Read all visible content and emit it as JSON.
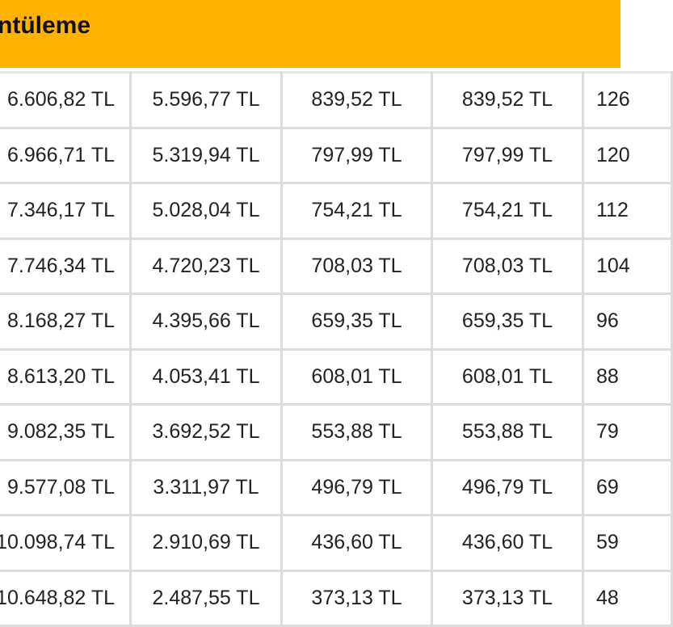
{
  "header": {
    "title": "ntüleme",
    "accent_color": "#FFB300"
  },
  "table": {
    "rows": [
      [
        "6.606,82 TL",
        "5.596,77 TL",
        "839,52 TL",
        "839,52 TL",
        "126"
      ],
      [
        "6.966,71 TL",
        "5.319,94 TL",
        "797,99 TL",
        "797,99 TL",
        "120"
      ],
      [
        "7.346,17 TL",
        "5.028,04 TL",
        "754,21 TL",
        "754,21 TL",
        "112"
      ],
      [
        "7.746,34 TL",
        "4.720,23 TL",
        "708,03 TL",
        "708,03 TL",
        "104"
      ],
      [
        "8.168,27 TL",
        "4.395,66 TL",
        "659,35 TL",
        "659,35 TL",
        "96"
      ],
      [
        "8.613,20 TL",
        "4.053,41 TL",
        "608,01 TL",
        "608,01 TL",
        "88"
      ],
      [
        "9.082,35 TL",
        "3.692,52 TL",
        "553,88 TL",
        "553,88 TL",
        "79"
      ],
      [
        "9.577,08 TL",
        "3.311,97 TL",
        "496,79 TL",
        "496,79 TL",
        "69"
      ],
      [
        "10.098,74 TL",
        "2.910,69 TL",
        "436,60 TL",
        "436,60 TL",
        "59"
      ],
      [
        "10.648,82 TL",
        "2.487,55 TL",
        "373,13 TL",
        "373,13 TL",
        "48"
      ]
    ]
  }
}
